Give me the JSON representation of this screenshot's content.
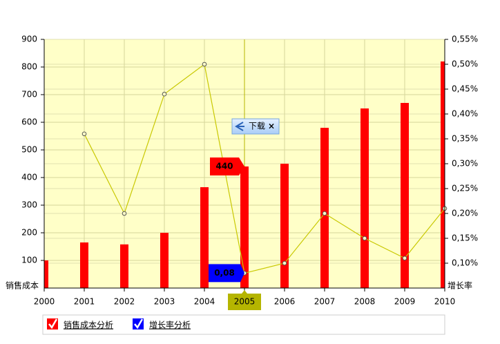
{
  "chart_data": {
    "type": "bar-line",
    "categories": [
      "2000",
      "2001",
      "2002",
      "2003",
      "2004",
      "2005",
      "2006",
      "2007",
      "2008",
      "2009",
      "2010"
    ],
    "series": [
      {
        "name": "销售成本分析",
        "type": "bar",
        "color": "#ff0000",
        "values": [
          100,
          165,
          158,
          200,
          365,
          440,
          450,
          580,
          650,
          670,
          820
        ]
      },
      {
        "name": "增长率分析",
        "type": "line",
        "axis": "y2",
        "color": "#c8c800",
        "legend_color": "#0000ff",
        "values": [
          null,
          0.36,
          0.2,
          0.44,
          0.5,
          0.08,
          0.1,
          0.2,
          0.15,
          0.11,
          0.21
        ],
        "value_labels": [
          null,
          null,
          null,
          null,
          null,
          "0,08",
          null,
          null,
          null,
          null,
          null
        ]
      }
    ],
    "y_label": "销售成本",
    "y2_label": "增长率",
    "ylim": [
      0,
      900
    ],
    "yticks": [
      100,
      200,
      300,
      400,
      500,
      600,
      700,
      800,
      900
    ],
    "y2lim": [
      0.05,
      0.55
    ],
    "y2ticks": [
      {
        "value": 0.1,
        "label": "0,10%"
      },
      {
        "value": 0.15,
        "label": "0,15%"
      },
      {
        "value": 0.2,
        "label": "0,20%"
      },
      {
        "value": 0.25,
        "label": "0,25%"
      },
      {
        "value": 0.3,
        "label": "0,30%"
      },
      {
        "value": 0.35,
        "label": "0,35%"
      },
      {
        "value": 0.4,
        "label": "0,40%"
      },
      {
        "value": 0.45,
        "label": "0,45%"
      },
      {
        "value": 0.5,
        "label": "0,50%"
      },
      {
        "value": 0.55,
        "label": "0,55%"
      }
    ],
    "grid": true,
    "cursor_index": 5,
    "download_button": {
      "label": "下载",
      "close": "×"
    }
  }
}
